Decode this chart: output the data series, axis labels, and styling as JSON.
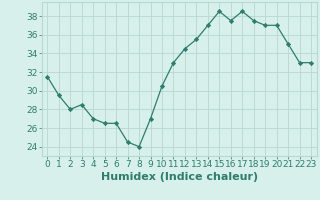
{
  "x": [
    0,
    1,
    2,
    3,
    4,
    5,
    6,
    7,
    8,
    9,
    10,
    11,
    12,
    13,
    14,
    15,
    16,
    17,
    18,
    19,
    20,
    21,
    22,
    23
  ],
  "y": [
    31.5,
    29.5,
    28.0,
    28.5,
    27.0,
    26.5,
    26.5,
    24.5,
    24.0,
    27.0,
    30.5,
    33.0,
    34.5,
    35.5,
    37.0,
    38.5,
    37.5,
    38.5,
    37.5,
    37.0,
    37.0,
    35.0,
    33.0,
    33.0
  ],
  "line_color": "#2e7d6e",
  "marker": "D",
  "marker_size": 2.2,
  "bg_color": "#d8f0ec",
  "grid_color": "#b8d8d0",
  "xlabel": "Humidex (Indice chaleur)",
  "xlim": [
    -0.5,
    23.5
  ],
  "ylim": [
    23,
    39.5
  ],
  "yticks": [
    24,
    26,
    28,
    30,
    32,
    34,
    36,
    38
  ],
  "xticks": [
    0,
    1,
    2,
    3,
    4,
    5,
    6,
    7,
    8,
    9,
    10,
    11,
    12,
    13,
    14,
    15,
    16,
    17,
    18,
    19,
    20,
    21,
    22,
    23
  ],
  "tick_color": "#2e7d6e",
  "label_color": "#2e7d6e",
  "xlabel_fontsize": 8,
  "tick_fontsize": 6.5
}
